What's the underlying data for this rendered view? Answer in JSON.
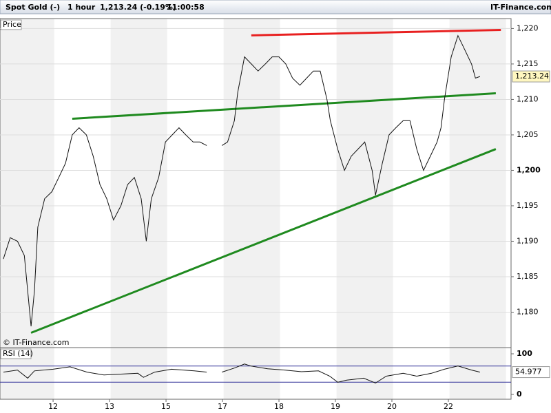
{
  "header": {
    "instrument": "Spot Gold (-)",
    "interval": "1 hour",
    "quote": "1,213.24 (-0.19%)",
    "time": "11:00:58"
  },
  "copyright": "© IT-Finance.com",
  "chart_data": [
    {
      "type": "line",
      "xlim": [
        -0.94,
        8.11
      ],
      "ylim": [
        1175,
        1221.4
      ],
      "yticks": [
        {
          "value": 1180,
          "label": "1,180"
        },
        {
          "value": 1185,
          "label": "1,185"
        },
        {
          "value": 1190,
          "label": "1,190"
        },
        {
          "value": 1195,
          "label": "1,195"
        },
        {
          "value": 1200,
          "label": "1,200"
        },
        {
          "value": 1205,
          "label": "1,205"
        },
        {
          "value": 1210,
          "label": "1,210"
        },
        {
          "value": 1215,
          "label": "1,215"
        },
        {
          "value": 1220,
          "label": "1,220"
        }
      ],
      "x": [
        -0.88,
        -0.76,
        -0.63,
        -0.51,
        -0.39,
        -0.33,
        -0.27,
        -0.15,
        -0.02,
        0.1,
        0.22,
        0.34,
        0.46,
        0.59,
        0.71,
        0.83,
        0.95,
        1.07,
        1.2,
        1.32,
        1.44,
        1.56,
        1.65,
        1.74,
        1.87,
        1.99,
        2.11,
        2.23,
        2.35,
        2.48,
        2.6,
        2.72,
        2.85,
        2.99,
        3.09,
        3.21,
        3.27,
        3.39,
        3.51,
        3.63,
        3.76,
        3.88,
        4.0,
        4.12,
        4.24,
        4.37,
        4.49,
        4.61,
        4.73,
        4.85,
        4.91,
        5.04,
        5.16,
        5.28,
        5.4,
        5.52,
        5.65,
        5.71,
        5.83,
        5.95,
        6.07,
        6.2,
        6.32,
        6.44,
        6.56,
        6.68,
        6.8,
        6.87,
        6.93,
        7.05,
        7.17,
        7.29,
        7.41,
        7.48,
        7.56
      ],
      "series": [
        {
          "name": "Price",
          "color": "#111111",
          "values": [
            1187.5,
            1190.5,
            1190,
            1188,
            1178,
            1183,
            1192,
            1196,
            1197,
            1199,
            1201,
            1205,
            1206,
            1205,
            1202,
            1198,
            1196,
            1193,
            1195,
            1198,
            1199,
            1196,
            1190,
            1196,
            1199,
            1204,
            1205,
            1206,
            1205,
            1204,
            1204,
            1203.5,
            null,
            1203.5,
            1204,
            1207,
            1211,
            1216,
            1215,
            1214,
            1215,
            1216,
            1216,
            1215,
            1213,
            1212,
            1213,
            1214,
            1214,
            1210,
            1207,
            1203,
            1200,
            1202,
            1203,
            1204,
            1200,
            1196.5,
            1201,
            1205,
            1206,
            1207,
            1207,
            1203,
            1200,
            1202,
            1204,
            1206,
            1210,
            1216,
            1219,
            1217,
            1215,
            1213,
            1213.24
          ]
        }
      ],
      "trendlines": [
        {
          "color": "#e82020",
          "x": [
            3.51,
            7.93
          ],
          "values": [
            1219.03,
            1219.8
          ]
        },
        {
          "color": "#1f8a1f",
          "x": [
            0.34,
            7.84
          ],
          "values": [
            1207.28,
            1210.87
          ]
        },
        {
          "color": "#1f8a1f",
          "x": [
            -0.39,
            7.84
          ],
          "values": [
            1177.09,
            1203.0
          ]
        }
      ],
      "last_value": {
        "value": 1213.24,
        "label": "1,213.24"
      }
    },
    {
      "type": "line",
      "xlim": [
        -0.94,
        8.11
      ],
      "ylim": [
        -11.9,
        115.3
      ],
      "yticks": [
        0,
        100
      ],
      "levels": [
        30,
        70
      ],
      "xticks": [
        {
          "value": 0,
          "label": "12"
        },
        {
          "value": 1,
          "label": "13"
        },
        {
          "value": 2,
          "label": "15"
        },
        {
          "value": 3,
          "label": "17"
        },
        {
          "value": 4,
          "label": "18"
        },
        {
          "value": 5,
          "label": "19"
        },
        {
          "value": 6,
          "label": "20"
        },
        {
          "value": 7,
          "label": "22"
        }
      ],
      "x": [
        -0.88,
        -0.63,
        -0.45,
        -0.33,
        0,
        0.3,
        0.6,
        0.9,
        1.2,
        1.5,
        1.6,
        1.8,
        2.1,
        2.5,
        2.72,
        2.85,
        2.99,
        3.21,
        3.39,
        3.5,
        3.8,
        4.1,
        4.4,
        4.7,
        4.9,
        5.04,
        5.2,
        5.5,
        5.71,
        5.9,
        6.2,
        6.44,
        6.7,
        6.93,
        7.17,
        7.41,
        7.56
      ],
      "series": [
        {
          "name": "RSI (14)",
          "color": "#111111",
          "values": [
            55,
            60,
            40,
            58,
            62,
            68,
            55,
            48,
            50,
            52,
            42,
            55,
            62,
            58,
            55,
            null,
            55,
            65,
            75,
            70,
            63,
            60,
            56,
            58,
            45,
            30,
            35,
            40,
            28,
            45,
            52,
            45,
            52,
            62,
            70,
            60,
            54.977
          ]
        }
      ],
      "last_value": 54.977
    }
  ]
}
